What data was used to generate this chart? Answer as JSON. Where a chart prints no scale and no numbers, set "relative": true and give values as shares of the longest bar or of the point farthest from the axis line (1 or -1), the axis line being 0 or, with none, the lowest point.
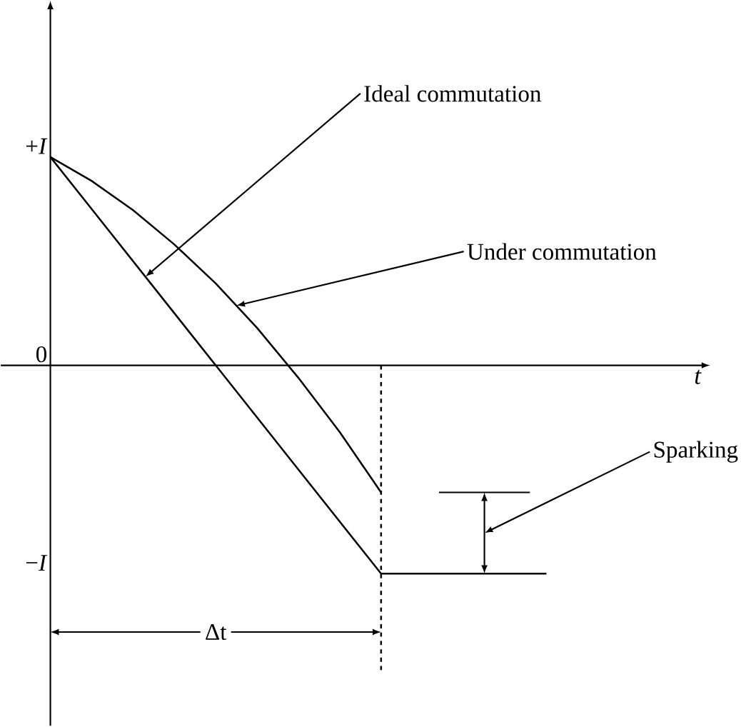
{
  "chart_data": {
    "type": "line",
    "categories": [
      null,
      null,
      null,
      null,
      null,
      null,
      null,
      null,
      null,
      null,
      null,
      null,
      null
    ],
    "series": [
      {
        "color": "#000000",
        "values": [
          1,
          0.75,
          0.5,
          0.25,
          0,
          -0.25,
          -0.5,
          -0.75,
          -1,
          -1,
          -1,
          -1,
          -1
        ]
      },
      {
        "color": "#000000",
        "values": [
          1,
          0.885,
          0.745,
          0.58,
          0.393,
          0.18,
          -0.06,
          -0.32,
          -0.61,
          null,
          null,
          null,
          null
        ]
      }
    ],
    "relative": true,
    "ref_lines": [
      {
        "axis": "y",
        "value": -0.61
      }
    ],
    "annotations": [
      "Ideal commutation",
      "Under commutation",
      "Sparking",
      "Δt",
      "+*I*",
      "0",
      "−*I*",
      "*t*"
    ]
  }
}
